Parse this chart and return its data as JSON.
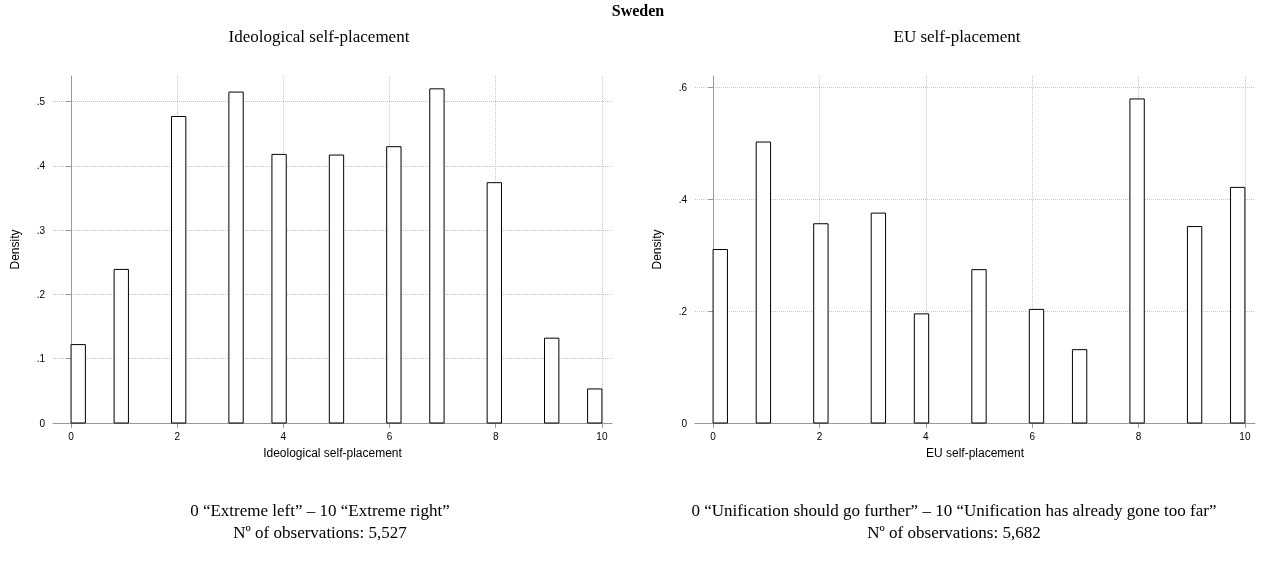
{
  "chart_data": [
    {
      "type": "histogram",
      "title": "Ideological self-placement",
      "xlabel": "Ideological self-placement",
      "ylabel": "Density",
      "bins": [
        0,
        0.27,
        0.541,
        0.811,
        1.081,
        1.351,
        1.622,
        1.892,
        2.162,
        2.432,
        2.703,
        2.973,
        3.243,
        3.514,
        3.784,
        4.054,
        4.324,
        4.595,
        4.865,
        5.135,
        5.405,
        5.676,
        5.946,
        6.216,
        6.486,
        6.757,
        7.027,
        7.297,
        7.568,
        7.838,
        8.108,
        8.378,
        8.649,
        8.919,
        9.189,
        9.459,
        9.73,
        10
      ],
      "values": [
        0.122,
        0,
        0,
        0.239,
        0,
        0,
        0,
        0.477,
        0,
        0,
        0,
        0.515,
        0,
        0,
        0.418,
        0,
        0,
        0,
        0.417,
        0,
        0,
        0,
        0.43,
        0,
        0,
        0.52,
        0,
        0,
        0,
        0.374,
        0,
        0,
        0,
        0.132,
        0,
        0,
        0.053
      ],
      "xlim": [
        -0.34,
        10.19
      ],
      "xticks": [
        0,
        2,
        4,
        6,
        8,
        10
      ],
      "ylim": [
        0,
        0.54
      ],
      "yticks": [
        0,
        {
          "value": 0.1,
          "label": ".1"
        },
        {
          "value": 0.2,
          "label": ".2"
        },
        {
          "value": 0.3,
          "label": ".3"
        },
        {
          "value": 0.4,
          "label": ".4"
        },
        {
          "value": 0.5,
          "label": ".5"
        }
      ],
      "grid": true,
      "annotations": [
        "Sweden",
        "0 “Extreme left” – 10 “Extreme right”",
        "Nº of observations: 5,527"
      ]
    },
    {
      "type": "histogram",
      "title": "EU self-placement",
      "xlabel": "EU self-placement",
      "ylabel": "Density",
      "bins": [
        0,
        0.27,
        0.541,
        0.811,
        1.081,
        1.351,
        1.622,
        1.892,
        2.162,
        2.432,
        2.703,
        2.973,
        3.243,
        3.514,
        3.784,
        4.054,
        4.324,
        4.595,
        4.865,
        5.135,
        5.405,
        5.676,
        5.946,
        6.216,
        6.486,
        6.757,
        7.027,
        7.297,
        7.568,
        7.838,
        8.108,
        8.378,
        8.649,
        8.919,
        9.189,
        9.459,
        9.73,
        10
      ],
      "values": [
        0.31,
        0,
        0,
        0.502,
        0,
        0,
        0,
        0.356,
        0,
        0,
        0,
        0.375,
        0,
        0,
        0.195,
        0,
        0,
        0,
        0.274,
        0,
        0,
        0,
        0.203,
        0,
        0,
        0.131,
        0,
        0,
        0,
        0.579,
        0,
        0,
        0,
        0.351,
        0,
        0,
        0.421
      ],
      "xlim": [
        -0.34,
        10.19
      ],
      "xticks": [
        0,
        2,
        4,
        6,
        8,
        10
      ],
      "ylim": [
        0,
        0.62
      ],
      "yticks": [
        0,
        {
          "value": 0.2,
          "label": ".2"
        },
        {
          "value": 0.4,
          "label": ".4"
        },
        {
          "value": 0.6,
          "label": ".6"
        }
      ],
      "grid": true,
      "annotations": [
        "0 “Unification should go further” – 10 “Unification has already gone too far”",
        "Nº of observations: 5,682"
      ]
    }
  ]
}
